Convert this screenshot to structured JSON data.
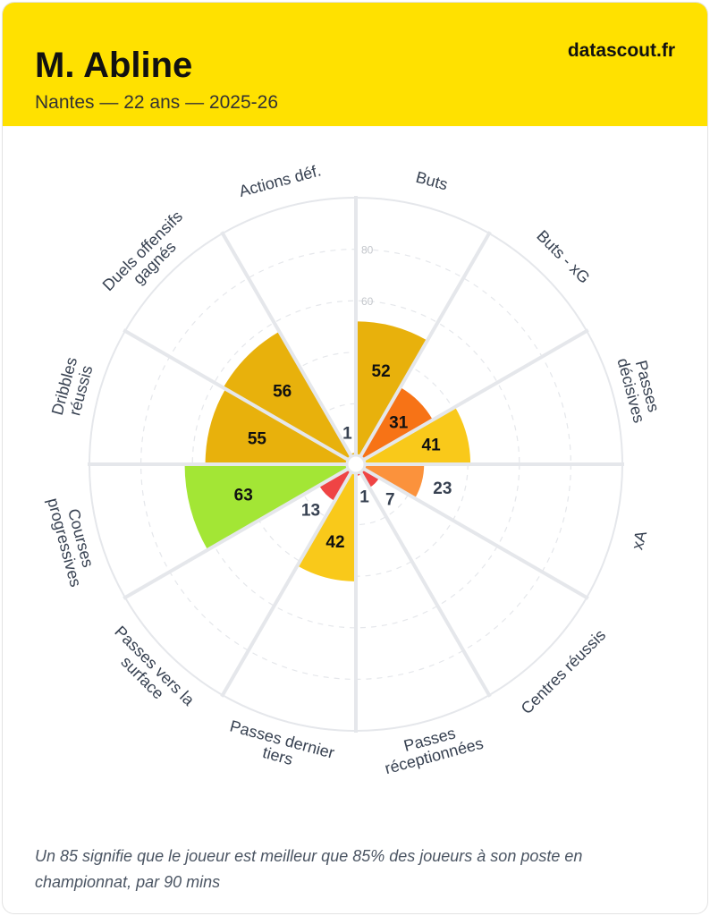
{
  "header": {
    "name": "M. Abline",
    "subtitle": "Nantes — 22 ans — 2025-26",
    "brand": "datascout.fr"
  },
  "footer": {
    "note": "Un 85 signifie que le joueur est meilleur que 85% des joueurs à son poste en championnat, par 90 mins"
  },
  "chart_data": {
    "type": "pie",
    "subtype": "pizza-percentile",
    "rlim": [
      0,
      100
    ],
    "grid_ticks": [
      20,
      40,
      60,
      80
    ],
    "grid_tick_labels_visible": [
      "60",
      "80"
    ],
    "categories": [
      {
        "label": [
          "Buts"
        ],
        "value": 52,
        "color": "#e8b10c"
      },
      {
        "label": [
          "Buts - xG"
        ],
        "value": 31,
        "color": "#f77316"
      },
      {
        "label": [
          "Passes",
          "décisives"
        ],
        "value": 41,
        "color": "#f9c91a"
      },
      {
        "label": [
          "xA"
        ],
        "value": 23,
        "color": "#fb923c"
      },
      {
        "label": [
          "Centres réussis"
        ],
        "value": 7,
        "color": "#ef4444"
      },
      {
        "label": [
          "Passes",
          "réceptionnées"
        ],
        "value": 1,
        "color": "#ef4444"
      },
      {
        "label": [
          "Passes dernier",
          "tiers"
        ],
        "value": 42,
        "color": "#f9c91a"
      },
      {
        "label": [
          "Passes vers la",
          "surface"
        ],
        "value": 13,
        "color": "#ef4444"
      },
      {
        "label": [
          "Courses",
          "progressives"
        ],
        "value": 63,
        "color": "#a3e635"
      },
      {
        "label": [
          "Dribbles",
          "réussis"
        ],
        "value": 55,
        "color": "#e8b10c"
      },
      {
        "label": [
          "Duels offensifs",
          "gagnés"
        ],
        "value": 56,
        "color": "#e8b10c"
      },
      {
        "label": [
          "Actions déf."
        ],
        "value": 1,
        "color": "#e8b10c"
      }
    ]
  }
}
